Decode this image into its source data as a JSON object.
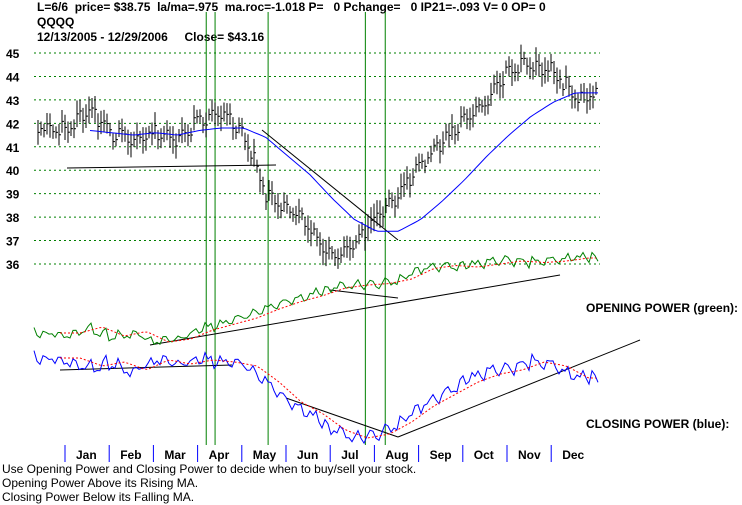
{
  "header": {
    "line1": "L=6/6  price= $38.75  la/ma=.975  ma.roc=-1.018 P=   0 Pchange=   0 IP21=-.093 V= 0 OP= 0",
    "line2": "QQQQ",
    "line3": "12/13/2005 - 12/29/2006     Close= $43.16"
  },
  "notes": [
    "Use Opening Power and Closing Power to decide when to buy/sell your stock.",
    "Opening Power Above its Rising MA.",
    "Closing Power Below its Falling MA."
  ],
  "labels": {
    "opening_power": "OPENING POWER (green):",
    "closing_power": "CLOSING POWER (blue):"
  },
  "colors": {
    "price_bars": "#000000",
    "price_ma": "#0000ff",
    "opening_power": "#008000",
    "closing_power": "#0000ff",
    "power_ma": "#ff0000",
    "signal_lines": "#008000",
    "gridlines": "#008000",
    "trendlines": "#000000"
  },
  "chart_data": {
    "type": "line",
    "symbol": "QQQQ",
    "date_range": [
      "12/13/2005",
      "12/29/2006"
    ],
    "months": [
      "Jan",
      "Feb",
      "Mar",
      "Apr",
      "May",
      "Jun",
      "Jul",
      "Aug",
      "Sep",
      "Oct",
      "Nov",
      "Dec"
    ],
    "y_ticks": [
      36,
      37,
      38,
      39,
      40,
      41,
      42,
      43,
      44,
      45
    ],
    "ylim": [
      35.5,
      45.3
    ],
    "grid": "horizontal dotted",
    "price_series": {
      "name": "QQQQ",
      "style": "high-low bars",
      "x_month": [
        0,
        0.5,
        1,
        1.5,
        2,
        2.5,
        3,
        3.5,
        4,
        4.5,
        5,
        5.5,
        6,
        6.5,
        7,
        7.5,
        8,
        8.5,
        9,
        9.5,
        10,
        10.5,
        11,
        11.5
      ],
      "close": [
        41.8,
        42.6,
        41.6,
        41.1,
        41.6,
        41.3,
        42.1,
        42.4,
        41.6,
        39.0,
        38.4,
        37.5,
        36.2,
        36.9,
        38.0,
        38.9,
        40.2,
        41.2,
        42.1,
        42.9,
        44.3,
        44.6,
        44.2,
        43.2
      ]
    },
    "price_ma": {
      "x_month": [
        0.5,
        1,
        1.5,
        2,
        2.5,
        3,
        3.5,
        4,
        4.5,
        5,
        5.5,
        6,
        6.5,
        7,
        7.5,
        8,
        8.5,
        9,
        9.5,
        10,
        10.5,
        11,
        11.5
      ],
      "values": [
        41.7,
        41.6,
        41.5,
        41.6,
        41.5,
        41.7,
        41.8,
        41.8,
        41.4,
        40.6,
        39.8,
        38.8,
        37.9,
        37.4,
        37.4,
        37.9,
        38.7,
        39.6,
        40.6,
        41.5,
        42.3,
        42.9,
        43.3
      ]
    },
    "opening_power": {
      "x_month": [
        0,
        0.5,
        1,
        1.5,
        2,
        2.5,
        3,
        3.5,
        4,
        4.5,
        5,
        5.5,
        6,
        6.5,
        7,
        7.5,
        8,
        8.5,
        9,
        9.5,
        10,
        10.5,
        11,
        11.5
      ],
      "values": [
        8,
        12,
        6,
        9,
        2,
        4,
        10,
        14,
        18,
        24,
        29,
        33,
        38,
        40,
        41,
        44,
        51,
        53,
        52,
        54,
        56,
        55,
        56,
        58
      ]
    },
    "closing_power": {
      "x_month": [
        0,
        0.5,
        1,
        1.5,
        2,
        2.5,
        3,
        3.5,
        4,
        4.5,
        5,
        5.5,
        6,
        6.5,
        7,
        7.5,
        8,
        8.5,
        9,
        9.5,
        10,
        10.5,
        11,
        11.5
      ],
      "values": [
        42,
        38,
        40,
        36,
        41,
        39,
        41,
        40,
        38,
        30,
        20,
        14,
        6,
        2,
        4,
        10,
        18,
        24,
        30,
        34,
        36,
        40,
        38,
        32
      ]
    },
    "signal_lines_x_month": [
      3.15,
      3.35,
      4.55,
      6.75,
      7.2
    ]
  }
}
